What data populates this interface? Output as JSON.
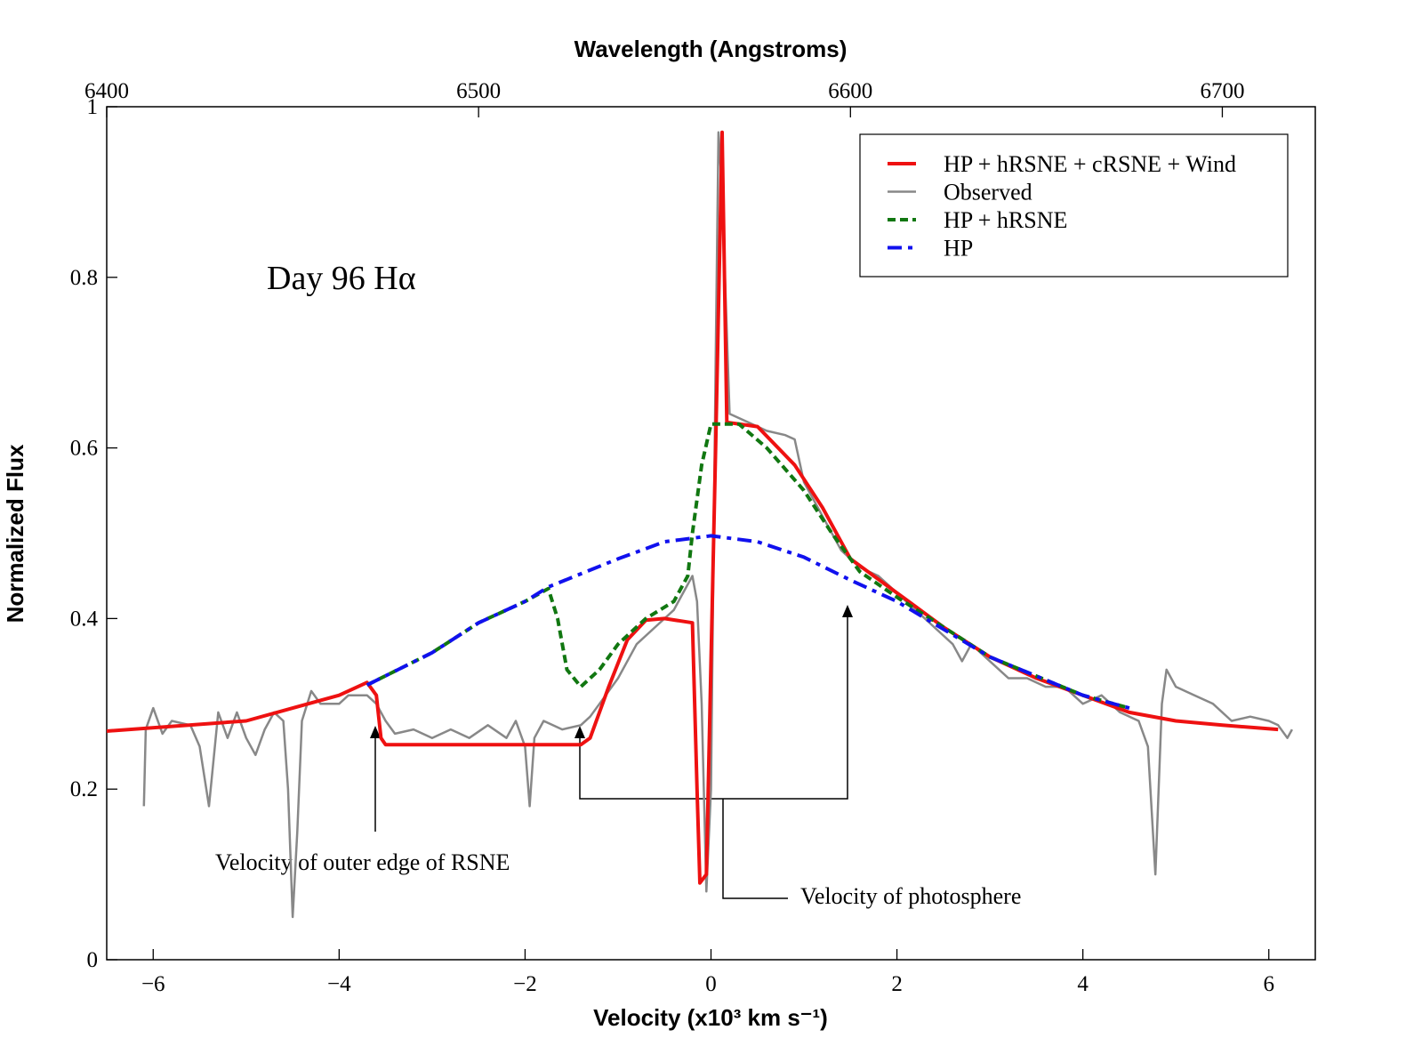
{
  "chart_data": {
    "type": "line",
    "title": "Wavelength (Angstroms)",
    "xlabel": "Velocity (x10³ km s⁻¹)",
    "ylabel": "Normalized Flux",
    "annotations": [
      "Day 96 Hα",
      "Velocity of outer edge of RSNE",
      "Velocity of photosphere"
    ],
    "xlim": [
      -6.5,
      6.5
    ],
    "xticks": [
      {
        "value": -6,
        "label": "−6"
      },
      {
        "value": -4,
        "label": "−4"
      },
      {
        "value": -2,
        "label": "−2"
      },
      0,
      2,
      4,
      6
    ],
    "x2lim": [
      6400,
      6725
    ],
    "x2ticks": [
      6400,
      6500,
      6600,
      6700
    ],
    "ylim": [
      0,
      1
    ],
    "yticks": [
      0,
      0.2,
      0.4,
      0.6,
      0.8,
      1
    ],
    "legend": "upper right",
    "series": [
      {
        "name": "HP + hRSNE + cRSNE + Wind",
        "color": "#ee1111",
        "linestyle": "solid",
        "width": 4,
        "x": [
          -6.5,
          -5,
          -4.5,
          -4,
          -3.7,
          -3.6,
          -3.55,
          -3.5,
          -1.4,
          -1.3,
          -1.1,
          -0.9,
          -0.7,
          -0.5,
          -0.2,
          -0.15,
          -0.12,
          -0.05,
          0.05,
          0.12,
          0.17,
          0.5,
          0.9,
          1.2,
          1.5,
          2,
          2.5,
          3,
          3.5,
          4,
          4.5,
          5,
          5.5,
          6.1
        ],
        "values": [
          0.268,
          0.28,
          0.295,
          0.31,
          0.325,
          0.31,
          0.26,
          0.252,
          0.252,
          0.26,
          0.32,
          0.375,
          0.398,
          0.4,
          0.395,
          0.2,
          0.09,
          0.1,
          0.6,
          0.97,
          0.63,
          0.625,
          0.58,
          0.53,
          0.47,
          0.43,
          0.39,
          0.355,
          0.33,
          0.31,
          0.29,
          0.28,
          0.275,
          0.27
        ]
      },
      {
        "name": "Observed",
        "color": "#888888",
        "linestyle": "solid",
        "width": 2.5,
        "x": [
          -6.1,
          -6.08,
          -6,
          -5.9,
          -5.8,
          -5.6,
          -5.5,
          -5.4,
          -5.3,
          -5.2,
          -5.1,
          -5,
          -4.9,
          -4.8,
          -4.7,
          -4.6,
          -4.55,
          -4.5,
          -4.45,
          -4.4,
          -4.3,
          -4.2,
          -4,
          -3.9,
          -3.7,
          -3.6,
          -3.5,
          -3.4,
          -3.2,
          -3,
          -2.8,
          -2.6,
          -2.4,
          -2.2,
          -2.1,
          -2,
          -1.95,
          -1.9,
          -1.8,
          -1.6,
          -1.4,
          -1.3,
          -1.2,
          -1,
          -0.8,
          -0.6,
          -0.4,
          -0.3,
          -0.2,
          -0.15,
          -0.1,
          -0.05,
          0,
          0.05,
          0.08,
          0.12,
          0.2,
          0.4,
          0.6,
          0.8,
          0.9,
          1,
          1.2,
          1.4,
          1.6,
          1.8,
          2,
          2.2,
          2.4,
          2.6,
          2.7,
          2.8,
          3,
          3.2,
          3.4,
          3.6,
          3.8,
          4,
          4.2,
          4.4,
          4.6,
          4.7,
          4.78,
          4.85,
          4.9,
          5,
          5.2,
          5.4,
          5.6,
          5.8,
          6,
          6.1,
          6.2,
          6.25
        ],
        "values": [
          0.18,
          0.27,
          0.295,
          0.265,
          0.28,
          0.275,
          0.25,
          0.18,
          0.29,
          0.26,
          0.29,
          0.26,
          0.24,
          0.27,
          0.29,
          0.28,
          0.2,
          0.05,
          0.15,
          0.28,
          0.315,
          0.3,
          0.3,
          0.31,
          0.31,
          0.3,
          0.28,
          0.265,
          0.27,
          0.26,
          0.27,
          0.26,
          0.275,
          0.26,
          0.28,
          0.25,
          0.18,
          0.26,
          0.28,
          0.27,
          0.275,
          0.285,
          0.3,
          0.33,
          0.37,
          0.39,
          0.41,
          0.43,
          0.45,
          0.42,
          0.3,
          0.08,
          0.2,
          0.7,
          0.97,
          0.9,
          0.64,
          0.63,
          0.62,
          0.615,
          0.61,
          0.56,
          0.52,
          0.48,
          0.46,
          0.45,
          0.43,
          0.41,
          0.39,
          0.37,
          0.35,
          0.37,
          0.35,
          0.33,
          0.33,
          0.32,
          0.32,
          0.3,
          0.31,
          0.29,
          0.28,
          0.25,
          0.1,
          0.3,
          0.34,
          0.32,
          0.31,
          0.3,
          0.28,
          0.285,
          0.28,
          0.275,
          0.26,
          0.27
        ]
      },
      {
        "name": "HP + hRSNE",
        "color": "#117711",
        "linestyle": "dashed",
        "width": 4,
        "x": [
          -3.7,
          -3,
          -2.5,
          -2,
          -1.75,
          -1.65,
          -1.55,
          -1.4,
          -1.2,
          -1,
          -0.7,
          -0.4,
          -0.25,
          -0.2,
          -0.1,
          0,
          0.3,
          0.6,
          1,
          1.3,
          1.6,
          2,
          3,
          4,
          4.5
        ],
        "values": [
          0.322,
          0.36,
          0.395,
          0.42,
          0.435,
          0.4,
          0.34,
          0.32,
          0.34,
          0.37,
          0.4,
          0.42,
          0.45,
          0.5,
          0.58,
          0.628,
          0.628,
          0.6,
          0.55,
          0.5,
          0.455,
          0.425,
          0.355,
          0.31,
          0.295
        ]
      },
      {
        "name": "HP",
        "color": "#1111ee",
        "linestyle": "dashdot",
        "width": 4,
        "x": [
          -3.7,
          -3,
          -2.5,
          -2,
          -1.75,
          -1,
          -0.5,
          0,
          0.5,
          1,
          1.5,
          2,
          3,
          4,
          4.5
        ],
        "values": [
          0.322,
          0.36,
          0.395,
          0.42,
          0.437,
          0.47,
          0.49,
          0.497,
          0.49,
          0.472,
          0.445,
          0.42,
          0.355,
          0.31,
          0.295
        ]
      }
    ]
  }
}
